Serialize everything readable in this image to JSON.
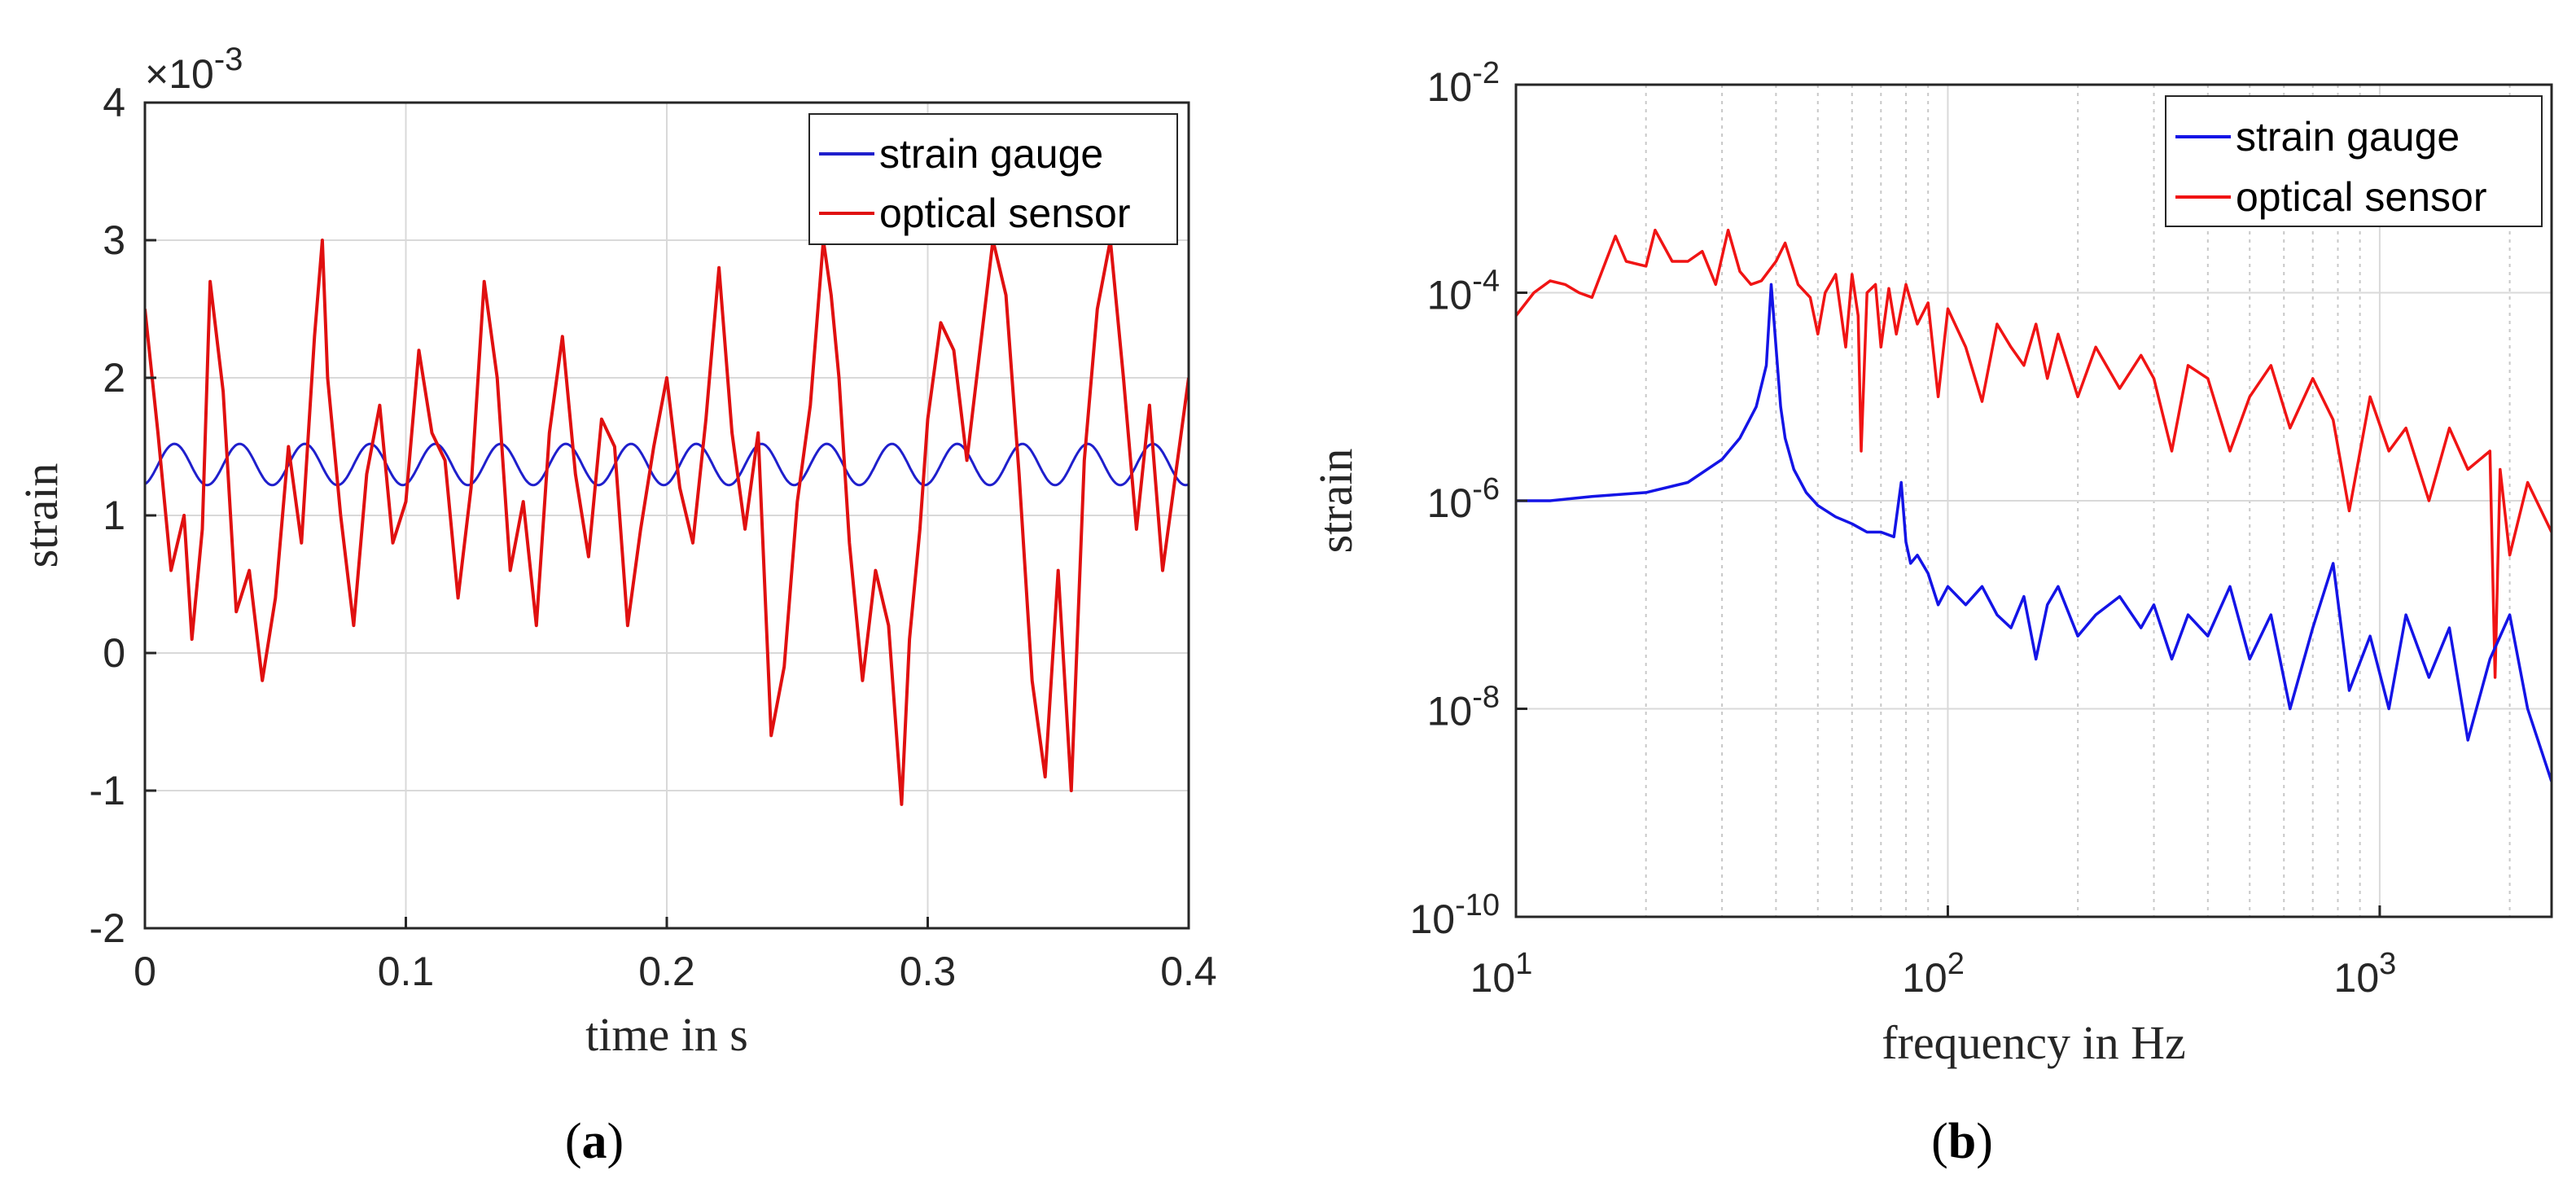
{
  "chart_data": [
    {
      "id": "a",
      "type": "line",
      "caption_prefix": "(",
      "caption_letter": "a",
      "caption_suffix": ")",
      "xlabel": "time in s",
      "ylabel": "strain",
      "exponent_label": "×10",
      "exponent_power": "-3",
      "xlim": [
        0,
        0.4
      ],
      "ylim": [
        -2,
        4
      ],
      "xticks": [
        0,
        0.1,
        0.2,
        0.3,
        0.4
      ],
      "xtick_labels": [
        "0",
        "0.1",
        "0.2",
        "0.3",
        "0.4"
      ],
      "yticks": [
        -2,
        -1,
        0,
        1,
        2,
        3,
        4
      ],
      "ytick_labels": [
        "-2",
        "-1",
        "0",
        "1",
        "2",
        "3",
        "4"
      ],
      "grid": true,
      "legend_position": "top-right",
      "series": [
        {
          "name": "strain gauge",
          "color": "#1f1fcc",
          "kind": "sine",
          "offset": 1.37,
          "amplitude": 0.15,
          "frequency_hz": 40
        },
        {
          "name": "optical sensor",
          "color": "#e01010",
          "kind": "points",
          "x": [
            0,
            0.005,
            0.01,
            0.015,
            0.018,
            0.022,
            0.025,
            0.03,
            0.035,
            0.04,
            0.045,
            0.05,
            0.055,
            0.06,
            0.065,
            0.068,
            0.07,
            0.075,
            0.08,
            0.085,
            0.09,
            0.095,
            0.1,
            0.105,
            0.11,
            0.115,
            0.12,
            0.125,
            0.13,
            0.135,
            0.14,
            0.145,
            0.15,
            0.155,
            0.16,
            0.165,
            0.17,
            0.175,
            0.18,
            0.185,
            0.19,
            0.195,
            0.2,
            0.205,
            0.21,
            0.215,
            0.22,
            0.225,
            0.23,
            0.235,
            0.24,
            0.245,
            0.25,
            0.255,
            0.26,
            0.263,
            0.266,
            0.27,
            0.275,
            0.28,
            0.285,
            0.29,
            0.293,
            0.297,
            0.3,
            0.305,
            0.31,
            0.315,
            0.32,
            0.325,
            0.33,
            0.335,
            0.34,
            0.345,
            0.35,
            0.355,
            0.36,
            0.365,
            0.37,
            0.375,
            0.38,
            0.385,
            0.39,
            0.395,
            0.4
          ],
          "values": [
            2.5,
            1.6,
            0.6,
            1.0,
            0.1,
            0.9,
            2.7,
            1.9,
            0.3,
            0.6,
            -0.2,
            0.4,
            1.5,
            0.8,
            2.3,
            3.0,
            2.0,
            1.0,
            0.2,
            1.3,
            1.8,
            0.8,
            1.1,
            2.2,
            1.6,
            1.4,
            0.4,
            1.2,
            2.7,
            2.0,
            0.6,
            1.1,
            0.2,
            1.6,
            2.3,
            1.3,
            0.7,
            1.7,
            1.5,
            0.2,
            0.9,
            1.5,
            2.0,
            1.2,
            0.8,
            1.7,
            2.8,
            1.6,
            0.9,
            1.6,
            -0.6,
            -0.1,
            1.1,
            1.8,
            3.0,
            2.6,
            2.0,
            0.8,
            -0.2,
            0.6,
            0.2,
            -1.1,
            0.1,
            0.9,
            1.7,
            2.4,
            2.2,
            1.4,
            2.2,
            3.0,
            2.6,
            1.3,
            -0.2,
            -0.9,
            0.6,
            -1.0,
            1.4,
            2.5,
            3.0,
            2.0,
            0.9,
            1.8,
            0.6,
            1.3,
            2.0
          ]
        }
      ]
    },
    {
      "id": "b",
      "type": "line",
      "caption_prefix": "(",
      "caption_letter": "b",
      "caption_suffix": ")",
      "xscale": "log",
      "yscale": "log",
      "xlabel": "frequency in Hz",
      "ylabel": "strain",
      "xlim": [
        10,
        2500
      ],
      "ylim": [
        1e-10,
        0.01
      ],
      "xticks": [
        10,
        100,
        1000
      ],
      "xtick_bases": [
        "10",
        "10",
        "10"
      ],
      "xtick_powers": [
        "1",
        "2",
        "3"
      ],
      "yticks": [
        1e-10,
        1e-08,
        1e-06,
        0.0001,
        0.01
      ],
      "ytick_bases": [
        "10",
        "10",
        "10",
        "10",
        "10"
      ],
      "ytick_powers": [
        "-10",
        "-8",
        "-6",
        "-4",
        "-2"
      ],
      "grid": true,
      "minor_grid": true,
      "legend_position": "top-right",
      "series": [
        {
          "name": "strain gauge",
          "color": "#1414e6",
          "x": [
            10,
            12,
            15,
            20,
            25,
            30,
            33,
            36,
            38,
            39,
            40,
            41,
            42,
            44,
            47,
            50,
            55,
            60,
            65,
            70,
            75,
            78,
            80,
            82,
            85,
            90,
            95,
            100,
            110,
            120,
            130,
            140,
            150,
            160,
            170,
            180,
            200,
            220,
            250,
            280,
            300,
            330,
            360,
            400,
            450,
            500,
            560,
            620,
            700,
            780,
            850,
            950,
            1050,
            1150,
            1300,
            1450,
            1600,
            1800,
            2000,
            2200,
            2500
          ],
          "values": [
            1e-06,
            1e-06,
            1.1e-06,
            1.2e-06,
            1.5e-06,
            2.5e-06,
            4e-06,
            8e-06,
            2e-05,
            0.00012,
            3e-05,
            8e-06,
            4e-06,
            2e-06,
            1.2e-06,
            9e-07,
            7e-07,
            6e-07,
            5e-07,
            5e-07,
            4.5e-07,
            1.5e-06,
            4e-07,
            2.5e-07,
            3e-07,
            2e-07,
            1e-07,
            1.5e-07,
            1e-07,
            1.5e-07,
            8e-08,
            6e-08,
            1.2e-07,
            3e-08,
            1e-07,
            1.5e-07,
            5e-08,
            8e-08,
            1.2e-07,
            6e-08,
            1e-07,
            3e-08,
            8e-08,
            5e-08,
            1.5e-07,
            3e-08,
            8e-08,
            1e-08,
            6e-08,
            2.5e-07,
            1.5e-08,
            5e-08,
            1e-08,
            8e-08,
            2e-08,
            6e-08,
            5e-09,
            3e-08,
            8e-08,
            1e-08,
            2e-09
          ]
        },
        {
          "name": "optical sensor",
          "color": "#f01414",
          "x": [
            10,
            11,
            12,
            13,
            14,
            15,
            17,
            18,
            20,
            21,
            23,
            25,
            27,
            29,
            31,
            33,
            35,
            37,
            40,
            42,
            45,
            48,
            50,
            52,
            55,
            58,
            60,
            62,
            63,
            65,
            68,
            70,
            73,
            76,
            80,
            85,
            90,
            95,
            100,
            110,
            120,
            130,
            140,
            150,
            160,
            170,
            180,
            200,
            220,
            250,
            280,
            300,
            330,
            360,
            400,
            450,
            500,
            560,
            620,
            700,
            780,
            850,
            950,
            1050,
            1150,
            1300,
            1450,
            1600,
            1800,
            1850,
            1900,
            2000,
            2200,
            2500
          ],
          "values": [
            6e-05,
            0.0001,
            0.00013,
            0.00012,
            0.0001,
            9e-05,
            0.00035,
            0.0002,
            0.00018,
            0.0004,
            0.0002,
            0.0002,
            0.00025,
            0.00012,
            0.0004,
            0.00016,
            0.00012,
            0.00013,
            0.0002,
            0.0003,
            0.00012,
            9e-05,
            4e-05,
            0.0001,
            0.00015,
            3e-05,
            0.00015,
            6e-05,
            3e-06,
            0.0001,
            0.00012,
            3e-05,
            0.00011,
            4e-05,
            0.00012,
            5e-05,
            8e-05,
            1e-05,
            7e-05,
            3e-05,
            9e-06,
            5e-05,
            3e-05,
            2e-05,
            5e-05,
            1.5e-05,
            4e-05,
            1e-05,
            3e-05,
            1.2e-05,
            2.5e-05,
            1.5e-05,
            3e-06,
            2e-05,
            1.5e-05,
            3e-06,
            1e-05,
            2e-05,
            5e-06,
            1.5e-05,
            6e-06,
            8e-07,
            1e-05,
            3e-06,
            5e-06,
            1e-06,
            5e-06,
            2e-06,
            3e-06,
            2e-08,
            2e-06,
            3e-07,
            1.5e-06,
            5e-07
          ]
        }
      ]
    }
  ]
}
